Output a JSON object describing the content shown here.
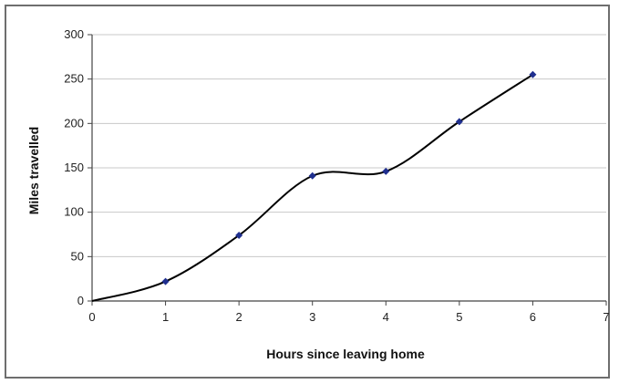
{
  "chart_data": {
    "type": "line",
    "title": "",
    "xlabel": "Hours since leaving home",
    "ylabel": "Miles travelled",
    "xlim": [
      0,
      7
    ],
    "ylim": [
      0,
      300
    ],
    "x_ticks": [
      "0",
      "1",
      "2",
      "3",
      "4",
      "5",
      "6",
      "7"
    ],
    "y_ticks": [
      "0",
      "50",
      "100",
      "150",
      "200",
      "250",
      "300"
    ],
    "grid": "horizontal",
    "smoothed": true,
    "legend": "none",
    "series": [
      {
        "x": [
          0,
          1,
          2,
          3,
          4,
          5,
          6
        ],
        "y": [
          0,
          22,
          74,
          141,
          146,
          202,
          255
        ],
        "line_color": "#000000",
        "marker_color": "#1f2f8f"
      }
    ]
  }
}
